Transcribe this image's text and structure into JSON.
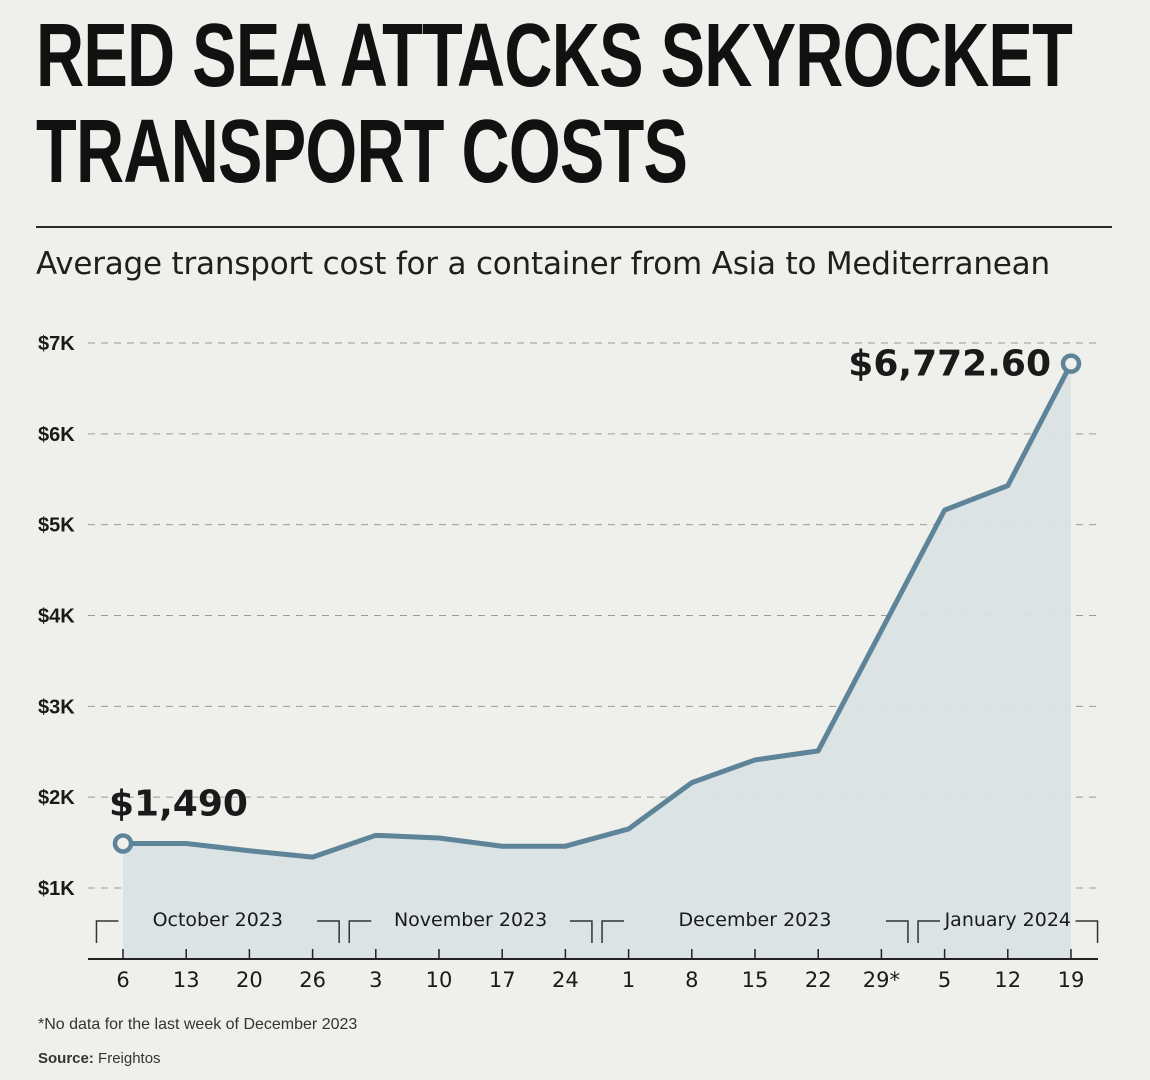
{
  "header": {
    "title": "RED SEA ATTACKS SKYROCKET TRANSPORT COSTS",
    "subtitle": "Average transport cost for a container from Asia to Mediterranean"
  },
  "footer": {
    "footnote": "*No data for the last week of December 2023",
    "source_label": "Source:",
    "source_value": "Freightos"
  },
  "colors": {
    "line": "#5e8499",
    "area": "#d9e1e4",
    "grid": "#9a9a9a",
    "text": "#1a1a1a"
  },
  "chart_data": {
    "type": "area",
    "x": [
      "6",
      "13",
      "20",
      "26",
      "3",
      "10",
      "17",
      "24",
      "1",
      "8",
      "15",
      "22",
      "29*",
      "5",
      "12",
      "19"
    ],
    "months": [
      {
        "label": "October 2023",
        "from": "6",
        "to": "26"
      },
      {
        "label": "November 2023",
        "from": "3",
        "to": "24"
      },
      {
        "label": "December 2023",
        "from": "1",
        "to": "29*"
      },
      {
        "label": "January 2024",
        "from": "5",
        "to": "19"
      }
    ],
    "series": [
      {
        "points": [
          {
            "x": "6",
            "y": 1490
          },
          {
            "x": "13",
            "y": 1490
          },
          {
            "x": "20",
            "y": 1410
          },
          {
            "x": "26",
            "y": 1340
          },
          {
            "x": "3",
            "y": 1580
          },
          {
            "x": "10",
            "y": 1550
          },
          {
            "x": "17",
            "y": 1460
          },
          {
            "x": "24",
            "y": 1460
          },
          {
            "x": "1",
            "y": 1650
          },
          {
            "x": "8",
            "y": 2160
          },
          {
            "x": "15",
            "y": 2410
          },
          {
            "x": "22",
            "y": 2510
          },
          {
            "x": "5",
            "y": 5160
          },
          {
            "x": "12",
            "y": 5430
          },
          {
            "x": "19",
            "y": 6772.6
          }
        ]
      }
    ],
    "yticks": [
      {
        "value": 1000,
        "label": "$1K"
      },
      {
        "value": 2000,
        "label": "$2K"
      },
      {
        "value": 3000,
        "label": "$3K"
      },
      {
        "value": 4000,
        "label": "$4K"
      },
      {
        "value": 5000,
        "label": "$5K"
      },
      {
        "value": 6000,
        "label": "$6K"
      },
      {
        "value": 7000,
        "label": "$7K"
      }
    ],
    "ylim": [
      0,
      7000
    ],
    "grid": true,
    "annotations": [
      {
        "x": "6",
        "y": 1490,
        "label": "$1,490"
      },
      {
        "x": "19",
        "y": 6772.6,
        "label": "$6,772.60"
      }
    ]
  }
}
